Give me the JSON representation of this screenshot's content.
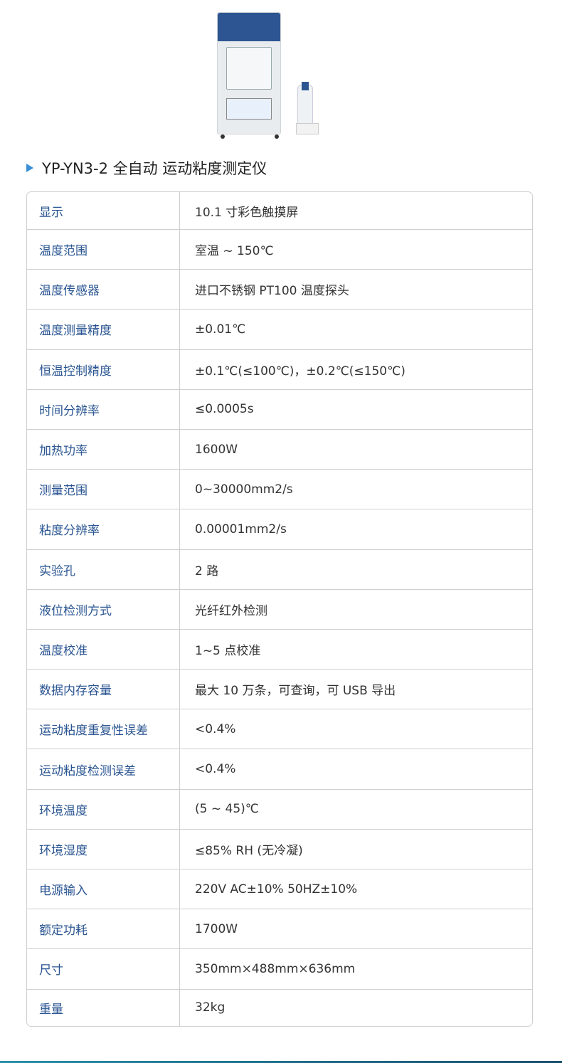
{
  "title": "YP-YN3-2 全自动 运动粘度测定仪",
  "specs": [
    {
      "label": "显示",
      "value": "10.1 寸彩色触摸屏"
    },
    {
      "label": "温度范围",
      "value": "室温 ~ 150℃"
    },
    {
      "label": "温度传感器",
      "value": "进口不锈钢 PT100 温度探头"
    },
    {
      "label": "温度测量精度",
      "value": "±0.01℃"
    },
    {
      "label": "恒温控制精度",
      "value": "±0.1℃(≤100℃)，±0.2℃(≤150℃)"
    },
    {
      "label": "时间分辨率",
      "value": "≤0.0005s"
    },
    {
      "label": "加热功率",
      "value": "1600W"
    },
    {
      "label": "测量范围",
      "value": "0~30000mm2/s"
    },
    {
      "label": "粘度分辨率",
      "value": "0.00001mm2/s"
    },
    {
      "label": "实验孔",
      "value": "2 路"
    },
    {
      "label": "液位检测方式",
      "value": "光纤红外检测"
    },
    {
      "label": "温度校准",
      "value": "1~5 点校准"
    },
    {
      "label": "数据内存容量",
      "value": "最大 10 万条，可查询，可 USB 导出"
    },
    {
      "label": "运动粘度重复性误差",
      "value": "<0.4%"
    },
    {
      "label": "运动粘度检测误差",
      "value": "<0.4%"
    },
    {
      "label": "环境温度",
      "value": "(5 ~ 45)℃"
    },
    {
      "label": "环境湿度",
      "value": "≤85% RH (无冷凝)"
    },
    {
      "label": "电源输入",
      "value": "220V AC±10% 50HZ±10%"
    },
    {
      "label": "额定功耗",
      "value": "1700W"
    },
    {
      "label": "尺寸",
      "value": "350mm×488mm×636mm"
    },
    {
      "label": "重量",
      "value": "32kg"
    }
  ]
}
